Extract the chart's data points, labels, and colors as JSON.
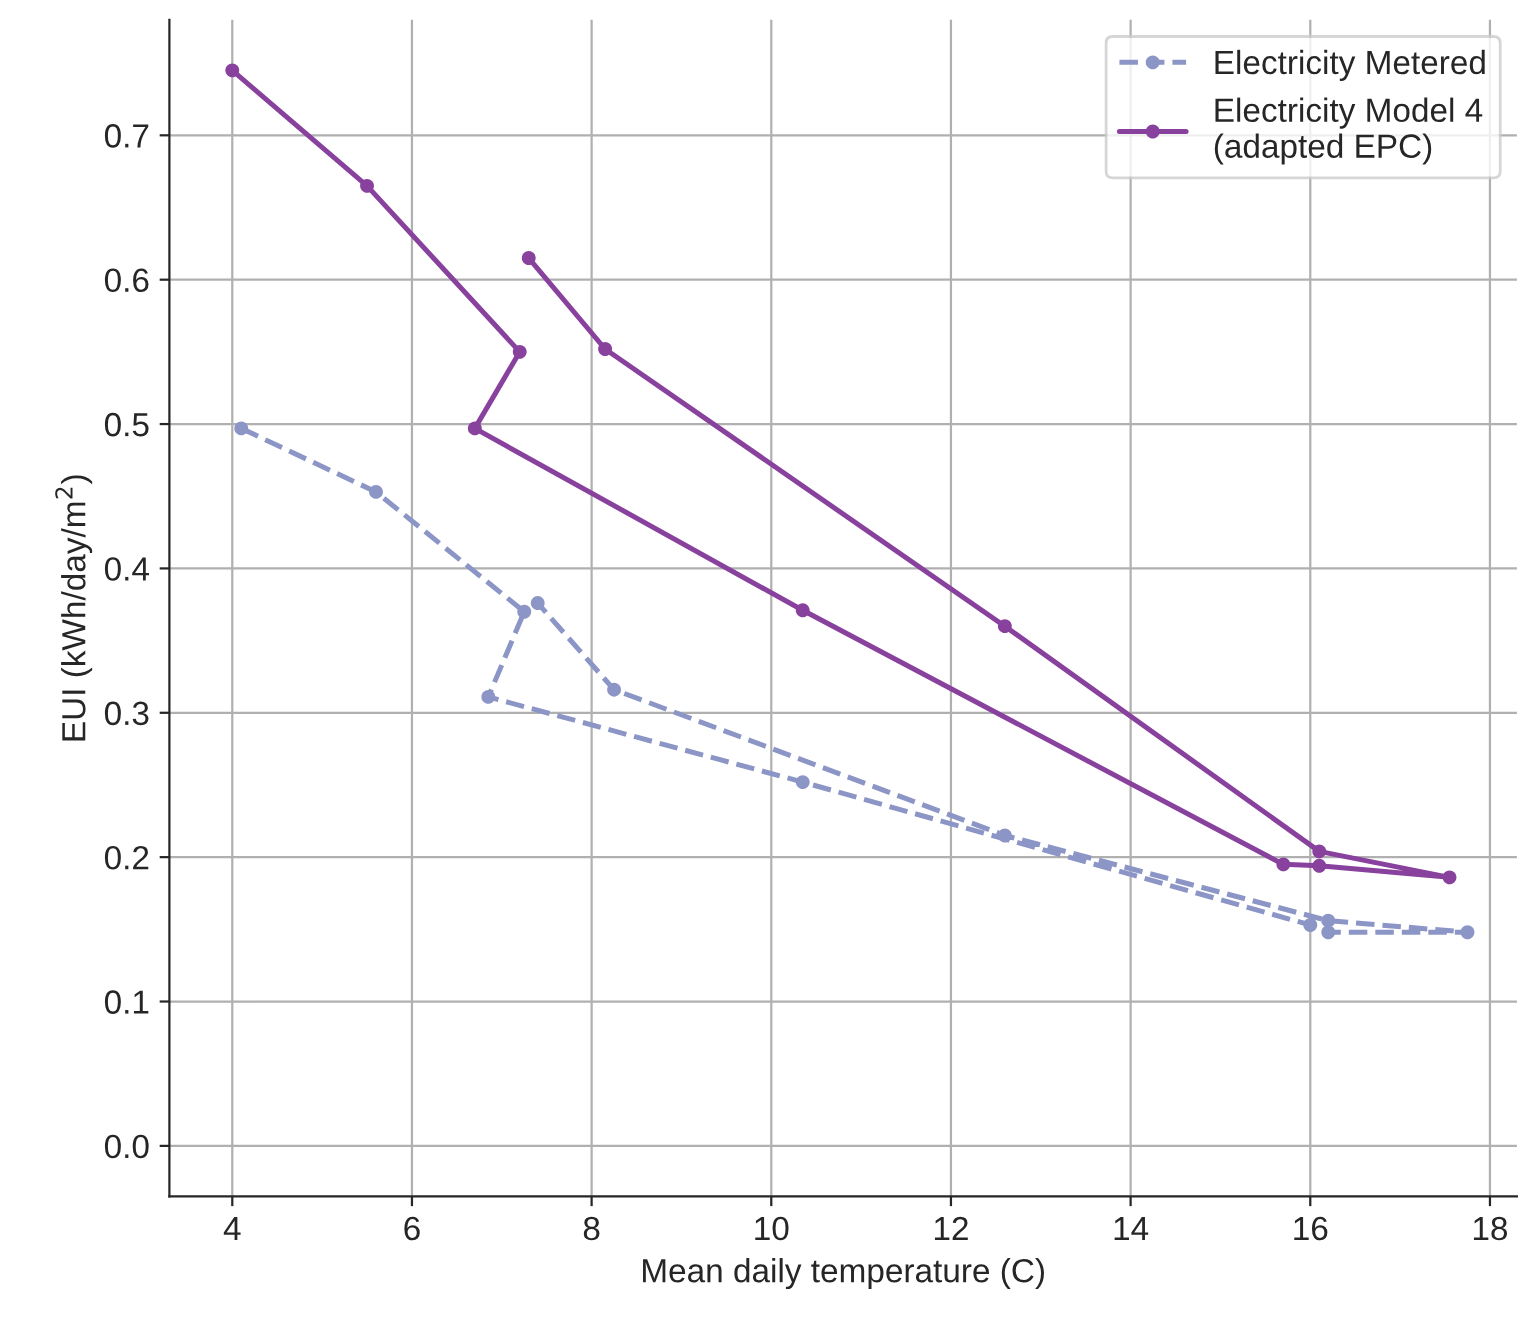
{
  "chart_data": {
    "type": "line",
    "xlabel": "Mean daily temperature (C)",
    "ylabel": "EUI (kWh/day/m$^{2}$)",
    "xlim": [
      3.3,
      18.3
    ],
    "xticks": [
      4,
      6,
      8,
      10,
      12,
      14,
      16,
      18
    ],
    "ylim": [
      -0.035,
      0.78
    ],
    "yticks": [
      {
        "value": 0,
        "label": "0.0"
      },
      0.1,
      0.2,
      0.3,
      0.4,
      0.5,
      0.6,
      0.7
    ],
    "grid": true,
    "legend": "top right",
    "marker": "circle",
    "series": [
      {
        "name": "Electricity Metered",
        "color": "#8c96c6",
        "line_style": "dashed",
        "x": [
          4.1,
          5.6,
          7.25,
          6.85,
          10.35,
          16.0,
          16.2,
          17.75,
          16.2,
          12.6,
          8.25,
          7.4
        ],
        "values": [
          0.497,
          0.453,
          0.37,
          0.311,
          0.252,
          0.153,
          0.148,
          0.148,
          0.156,
          0.215,
          0.316,
          0.376
        ]
      },
      {
        "name": "Electricity Model 4\n(adapted EPC)",
        "color": "#88419d",
        "line_style": "solid",
        "x": [
          4.0,
          5.5,
          7.2,
          6.7,
          10.35,
          15.7,
          16.1,
          17.55,
          16.1,
          12.6,
          8.15,
          7.3
        ],
        "values": [
          0.745,
          0.665,
          0.55,
          0.497,
          0.371,
          0.195,
          0.194,
          0.186,
          0.204,
          0.36,
          0.552,
          0.615
        ]
      }
    ]
  }
}
